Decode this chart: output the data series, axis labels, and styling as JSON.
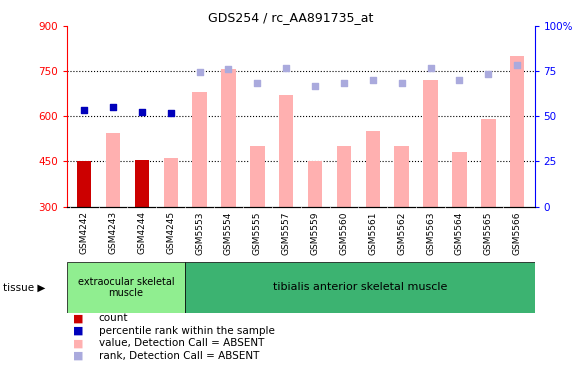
{
  "title": "GDS254 / rc_AA891735_at",
  "samples": [
    "GSM4242",
    "GSM4243",
    "GSM4244",
    "GSM4245",
    "GSM5553",
    "GSM5554",
    "GSM5555",
    "GSM5557",
    "GSM5559",
    "GSM5560",
    "GSM5561",
    "GSM5562",
    "GSM5563",
    "GSM5564",
    "GSM5565",
    "GSM5566"
  ],
  "bar_values": [
    450,
    545,
    455,
    460,
    680,
    755,
    500,
    670,
    450,
    500,
    550,
    500,
    720,
    480,
    590,
    800
  ],
  "bar_colors_list": [
    "#cc0000",
    "#ffb0b0",
    "#cc0000",
    "#ffb0b0",
    "#ffb0b0",
    "#ffb0b0",
    "#ffb0b0",
    "#ffb0b0",
    "#ffb0b0",
    "#ffb0b0",
    "#ffb0b0",
    "#ffb0b0",
    "#ffb0b0",
    "#ffb0b0",
    "#ffb0b0",
    "#ffb0b0"
  ],
  "rank_points": [
    620,
    630,
    615,
    610,
    745,
    755,
    710,
    760,
    700,
    710,
    720,
    710,
    760,
    720,
    740,
    770
  ],
  "rank_colors": [
    "#0000bb",
    "#0000bb",
    "#0000bb",
    "#0000bb",
    "#aaaadd",
    "#aaaadd",
    "#aaaadd",
    "#aaaadd",
    "#aaaadd",
    "#aaaadd",
    "#aaaadd",
    "#aaaadd",
    "#aaaadd",
    "#aaaadd",
    "#aaaadd",
    "#aaaadd"
  ],
  "ylim_left": [
    300,
    900
  ],
  "ylim_right": [
    0,
    100
  ],
  "yticks_left": [
    300,
    450,
    600,
    750,
    900
  ],
  "yticks_right": [
    0,
    25,
    50,
    75,
    100
  ],
  "ytick_labels_left": [
    "300",
    "450",
    "600",
    "750",
    "900"
  ],
  "ytick_labels_right": [
    "0",
    "25",
    "50",
    "75",
    "100%"
  ],
  "hlines": [
    450,
    600,
    750
  ],
  "tissue_label1": "extraocular skeletal\nmuscle",
  "tissue_label2": "tibialis anterior skeletal muscle",
  "tissue_bg1": "#90EE90",
  "tissue_bg2": "#3CB371",
  "bar_width": 0.5,
  "bar_base": 300,
  "legend_items": [
    {
      "color": "#cc0000",
      "label": "count"
    },
    {
      "color": "#0000bb",
      "label": "percentile rank within the sample"
    },
    {
      "color": "#ffb0b0",
      "label": "value, Detection Call = ABSENT"
    },
    {
      "color": "#aaaadd",
      "label": "rank, Detection Call = ABSENT"
    }
  ]
}
